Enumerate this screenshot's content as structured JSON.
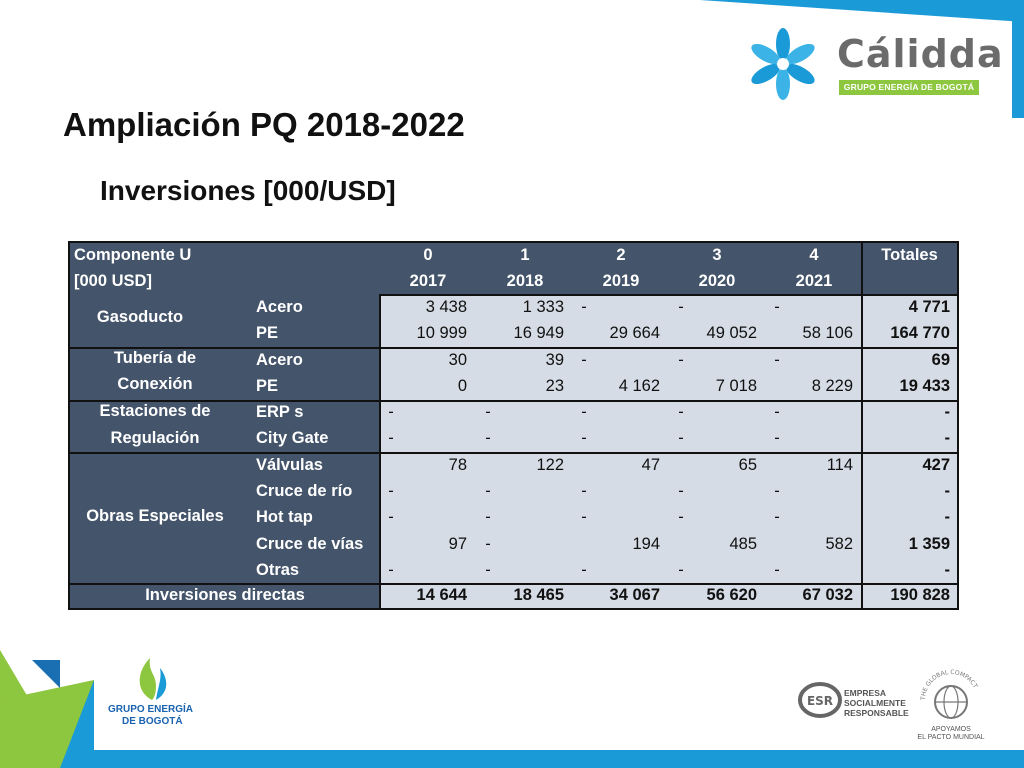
{
  "slide": {
    "title": "Ampliación PQ 2018-2022",
    "subtitle": "Inversiones [000/USD]"
  },
  "brand": {
    "name": "Cálidda",
    "tagline": "GRUPO ENERGÍA DE BOGOTÁ",
    "accent_blue": "#1a9ad6",
    "accent_green": "#8dc63f",
    "header_color": "#44546a",
    "row_color": "#d6dce5"
  },
  "table": {
    "header": {
      "line1_label": "Componente U",
      "line2_label": "[000 USD]",
      "periods": [
        "0",
        "1",
        "2",
        "3",
        "4"
      ],
      "years": [
        "2017",
        "2018",
        "2019",
        "2020",
        "2021"
      ],
      "total_label": "Totales"
    },
    "groups": [
      {
        "name": "Gasoducto",
        "rows": [
          {
            "label": "Acero",
            "values": [
              "3 438",
              "1 333",
              "-",
              "-",
              "-"
            ],
            "total": "4 771"
          },
          {
            "label": "PE",
            "values": [
              "10 999",
              "16 949",
              "29 664",
              "49 052",
              "58 106"
            ],
            "total": "164 770"
          }
        ]
      },
      {
        "name_line1": "Tubería de",
        "name_line2": "Conexión",
        "rows": [
          {
            "label": "Acero",
            "values": [
              "30",
              "39",
              "-",
              "-",
              "-"
            ],
            "total": "69"
          },
          {
            "label": "PE",
            "values": [
              "0",
              "23",
              "4 162",
              "7 018",
              "8 229"
            ],
            "total": "19 433"
          }
        ]
      },
      {
        "name_line1": "Estaciones de",
        "name_line2": "Regulación",
        "rows": [
          {
            "label": "ERP s",
            "values": [
              "-",
              "-",
              "-",
              "-",
              "-"
            ],
            "total": "-"
          },
          {
            "label": "City Gate",
            "values": [
              "-",
              "-",
              "-",
              "-",
              "-"
            ],
            "total": "-"
          }
        ]
      },
      {
        "name": "Obras Especiales",
        "rows": [
          {
            "label": "Válvulas",
            "values": [
              "78",
              "122",
              "47",
              "65",
              "114"
            ],
            "total": "427"
          },
          {
            "label": "Cruce de río",
            "values": [
              "-",
              "-",
              "-",
              "-",
              "-"
            ],
            "total": "-"
          },
          {
            "label": "Hot tap",
            "values": [
              "-",
              "-",
              "-",
              "-",
              "-"
            ],
            "total": "-"
          },
          {
            "label": "Cruce de vías",
            "values": [
              "97",
              "-",
              "194",
              "485",
              "582"
            ],
            "total": "1 359"
          },
          {
            "label": "Otras",
            "values": [
              "-",
              "-",
              "-",
              "-",
              "-"
            ],
            "total": "-"
          }
        ]
      }
    ],
    "footer": {
      "label": "Inversiones directas",
      "values": [
        "14 644",
        "18 465",
        "34 067",
        "56 620",
        "67 032"
      ],
      "total": "190 828"
    }
  },
  "footer_logos": {
    "geb_line1": "GRUPO ENERGÍA",
    "geb_line2": "DE BOGOTÁ",
    "esr_line1": "EMPRESA",
    "esr_line2": "SOCIALMENTE",
    "esr_line3": "RESPONSABLE",
    "esr_badge": "ESR",
    "gc_line1": "APOYAMOS",
    "gc_line2": "EL PACTO MUNDIAL",
    "gc_ring": "THE GLOBAL COMPACT"
  }
}
